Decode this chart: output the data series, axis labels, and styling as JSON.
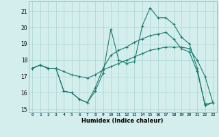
{
  "xlabel": "Humidex (Indice chaleur)",
  "x": [
    0,
    1,
    2,
    3,
    4,
    5,
    6,
    7,
    8,
    9,
    10,
    11,
    12,
    13,
    14,
    15,
    16,
    17,
    18,
    19,
    20,
    21,
    22,
    23
  ],
  "line1": [
    17.5,
    17.7,
    17.5,
    17.5,
    16.1,
    16.0,
    15.6,
    15.4,
    16.1,
    17.2,
    19.9,
    18.0,
    17.8,
    17.9,
    20.1,
    21.2,
    20.6,
    20.6,
    20.2,
    19.4,
    19.0,
    17.5,
    15.2,
    15.4
  ],
  "line2": [
    17.5,
    17.7,
    17.5,
    17.5,
    16.1,
    16.0,
    15.6,
    15.4,
    16.3,
    17.5,
    18.3,
    18.6,
    18.8,
    19.1,
    19.3,
    19.5,
    19.6,
    19.7,
    19.3,
    18.7,
    18.5,
    17.3,
    15.3,
    15.4
  ],
  "line3": [
    17.5,
    17.7,
    17.5,
    17.5,
    17.3,
    17.1,
    17.0,
    16.9,
    17.1,
    17.4,
    17.6,
    17.8,
    18.0,
    18.2,
    18.4,
    18.6,
    18.7,
    18.8,
    18.8,
    18.8,
    18.7,
    18.0,
    17.0,
    15.4
  ],
  "line_color": "#1a7a6e",
  "bg_color": "#d4eeee",
  "grid_color": "#aad4d4",
  "ylim": [
    14.8,
    21.6
  ],
  "yticks": [
    15,
    16,
    17,
    18,
    19,
    20,
    21
  ],
  "xlim": [
    -0.5,
    23.5
  ]
}
